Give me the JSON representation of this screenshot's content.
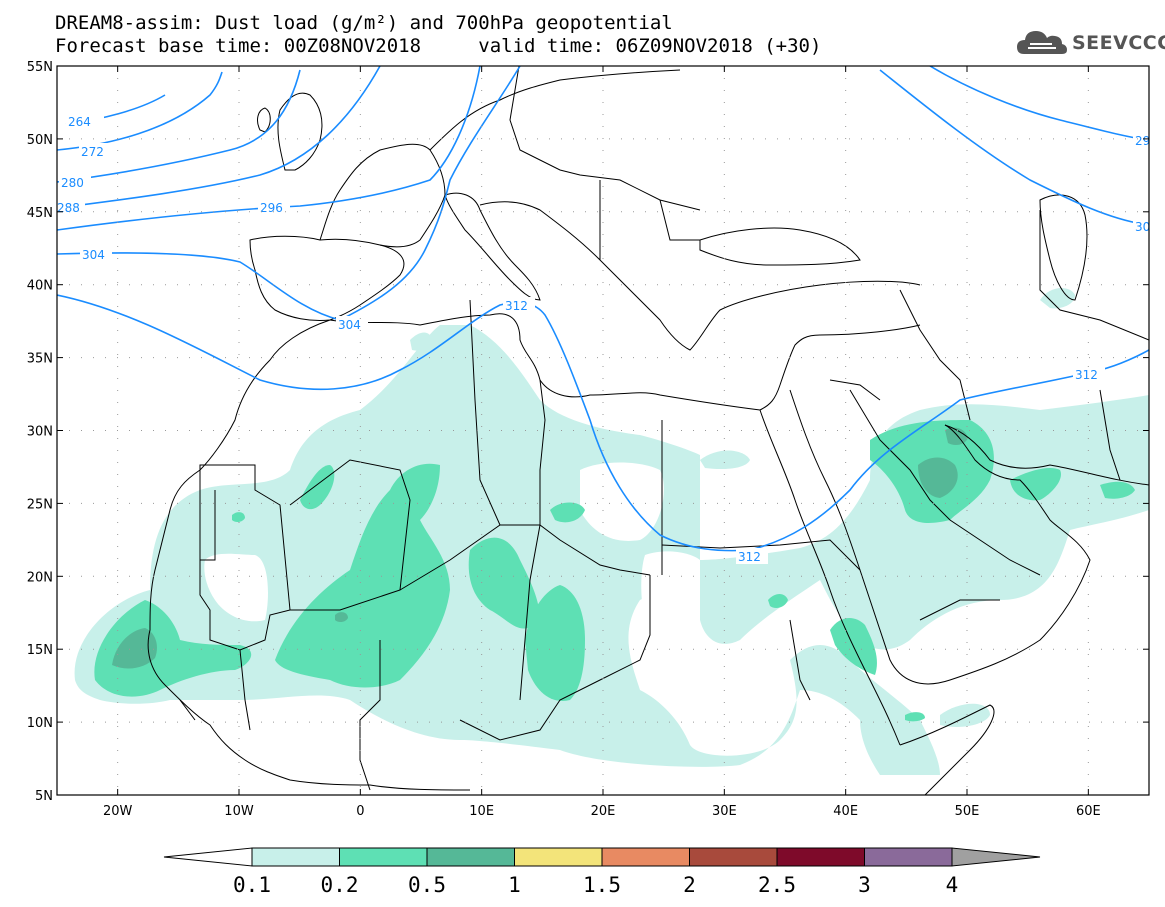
{
  "title": {
    "line1": "DREAM8-assim: Dust load (g/m²) and 700hPa geopotential",
    "line2_base": "Forecast base time: 00Z08NOV2018",
    "line2_valid": "valid time: 06Z09NOV2018 (+30)"
  },
  "logo": {
    "text": "SEEVCCC",
    "icon": "cloud-icon"
  },
  "map": {
    "lon_range": [
      -25,
      65
    ],
    "lat_range": [
      5,
      55
    ],
    "lat_ticks": [
      {
        "value": 55,
        "label": "55N"
      },
      {
        "value": 50,
        "label": "50N"
      },
      {
        "value": 45,
        "label": "45N"
      },
      {
        "value": 40,
        "label": "40N"
      },
      {
        "value": 35,
        "label": "35N"
      },
      {
        "value": 30,
        "label": "30N"
      },
      {
        "value": 25,
        "label": "25N"
      },
      {
        "value": 20,
        "label": "20N"
      },
      {
        "value": 15,
        "label": "15N"
      },
      {
        "value": 10,
        "label": "10N"
      },
      {
        "value": 5,
        "label": "5N"
      }
    ],
    "lon_ticks": [
      {
        "value": -20,
        "label": "20W"
      },
      {
        "value": -10,
        "label": "10W"
      },
      {
        "value": 0,
        "label": "0"
      },
      {
        "value": 10,
        "label": "10E"
      },
      {
        "value": 20,
        "label": "20E"
      },
      {
        "value": 30,
        "label": "30E"
      },
      {
        "value": 40,
        "label": "40E"
      },
      {
        "value": 50,
        "label": "50E"
      },
      {
        "value": 60,
        "label": "60E"
      }
    ],
    "geopotential_contour_labels": [
      "264",
      "272",
      "280",
      "288",
      "296",
      "304",
      "304",
      "312",
      "312",
      "312",
      "29",
      "30"
    ],
    "contour_color": "#1a8cff"
  },
  "colorbar": {
    "levels": [
      "0.1",
      "0.2",
      "0.5",
      "1",
      "1.5",
      "2",
      "2.5",
      "3",
      "4"
    ],
    "colors": [
      "#c8f0ea",
      "#5ee0b4",
      "#55b897",
      "#f3e47a",
      "#e88a62",
      "#a84a3c",
      "#7e0a2a",
      "#8a6a9a"
    ],
    "under_color": "#ffffff",
    "over_color": "#a0a0a0"
  }
}
